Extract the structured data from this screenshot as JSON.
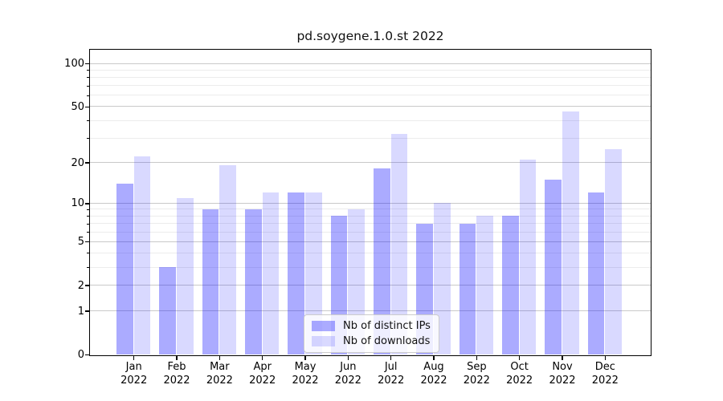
{
  "title": "pd.soygene.1.0.st 2022",
  "chart_data": {
    "type": "bar",
    "title": "pd.soygene.1.0.st 2022",
    "categories": [
      "Jan 2022",
      "Feb 2022",
      "Mar 2022",
      "Apr 2022",
      "May 2022",
      "Jun 2022",
      "Jul 2022",
      "Aug 2022",
      "Sep 2022",
      "Oct 2022",
      "Nov 2022",
      "Dec 2022"
    ],
    "series": [
      {
        "name": "Nb of distinct IPs",
        "color": "rgba(0,0,255,0.33)",
        "values": [
          14,
          3,
          9,
          9,
          12,
          8,
          18,
          7,
          7,
          8,
          15,
          12
        ]
      },
      {
        "name": "Nb of downloads",
        "color": "rgba(0,0,255,0.15)",
        "values": [
          22,
          11,
          19,
          12,
          12,
          9,
          32,
          10,
          8,
          21,
          46,
          25
        ]
      }
    ],
    "yscale": "log1p",
    "ylim": [
      0,
      124.6
    ],
    "yticks": [
      0,
      1,
      2,
      5,
      10,
      20,
      50,
      100
    ],
    "minor_yticks": [
      3,
      4,
      6,
      7,
      8,
      9,
      30,
      40,
      60,
      70,
      80,
      90
    ],
    "xlabel": "",
    "ylabel": "",
    "grid": true,
    "legend_position": "lower-center"
  },
  "colors": {
    "major_grid": "#c9c9c9",
    "minor_grid": "#ececec",
    "spine": "#000000",
    "background": "#ffffff",
    "ips_bar": "rgba(0,0,255,0.33)",
    "downloads_bar": "rgba(0,0,255,0.15)"
  }
}
